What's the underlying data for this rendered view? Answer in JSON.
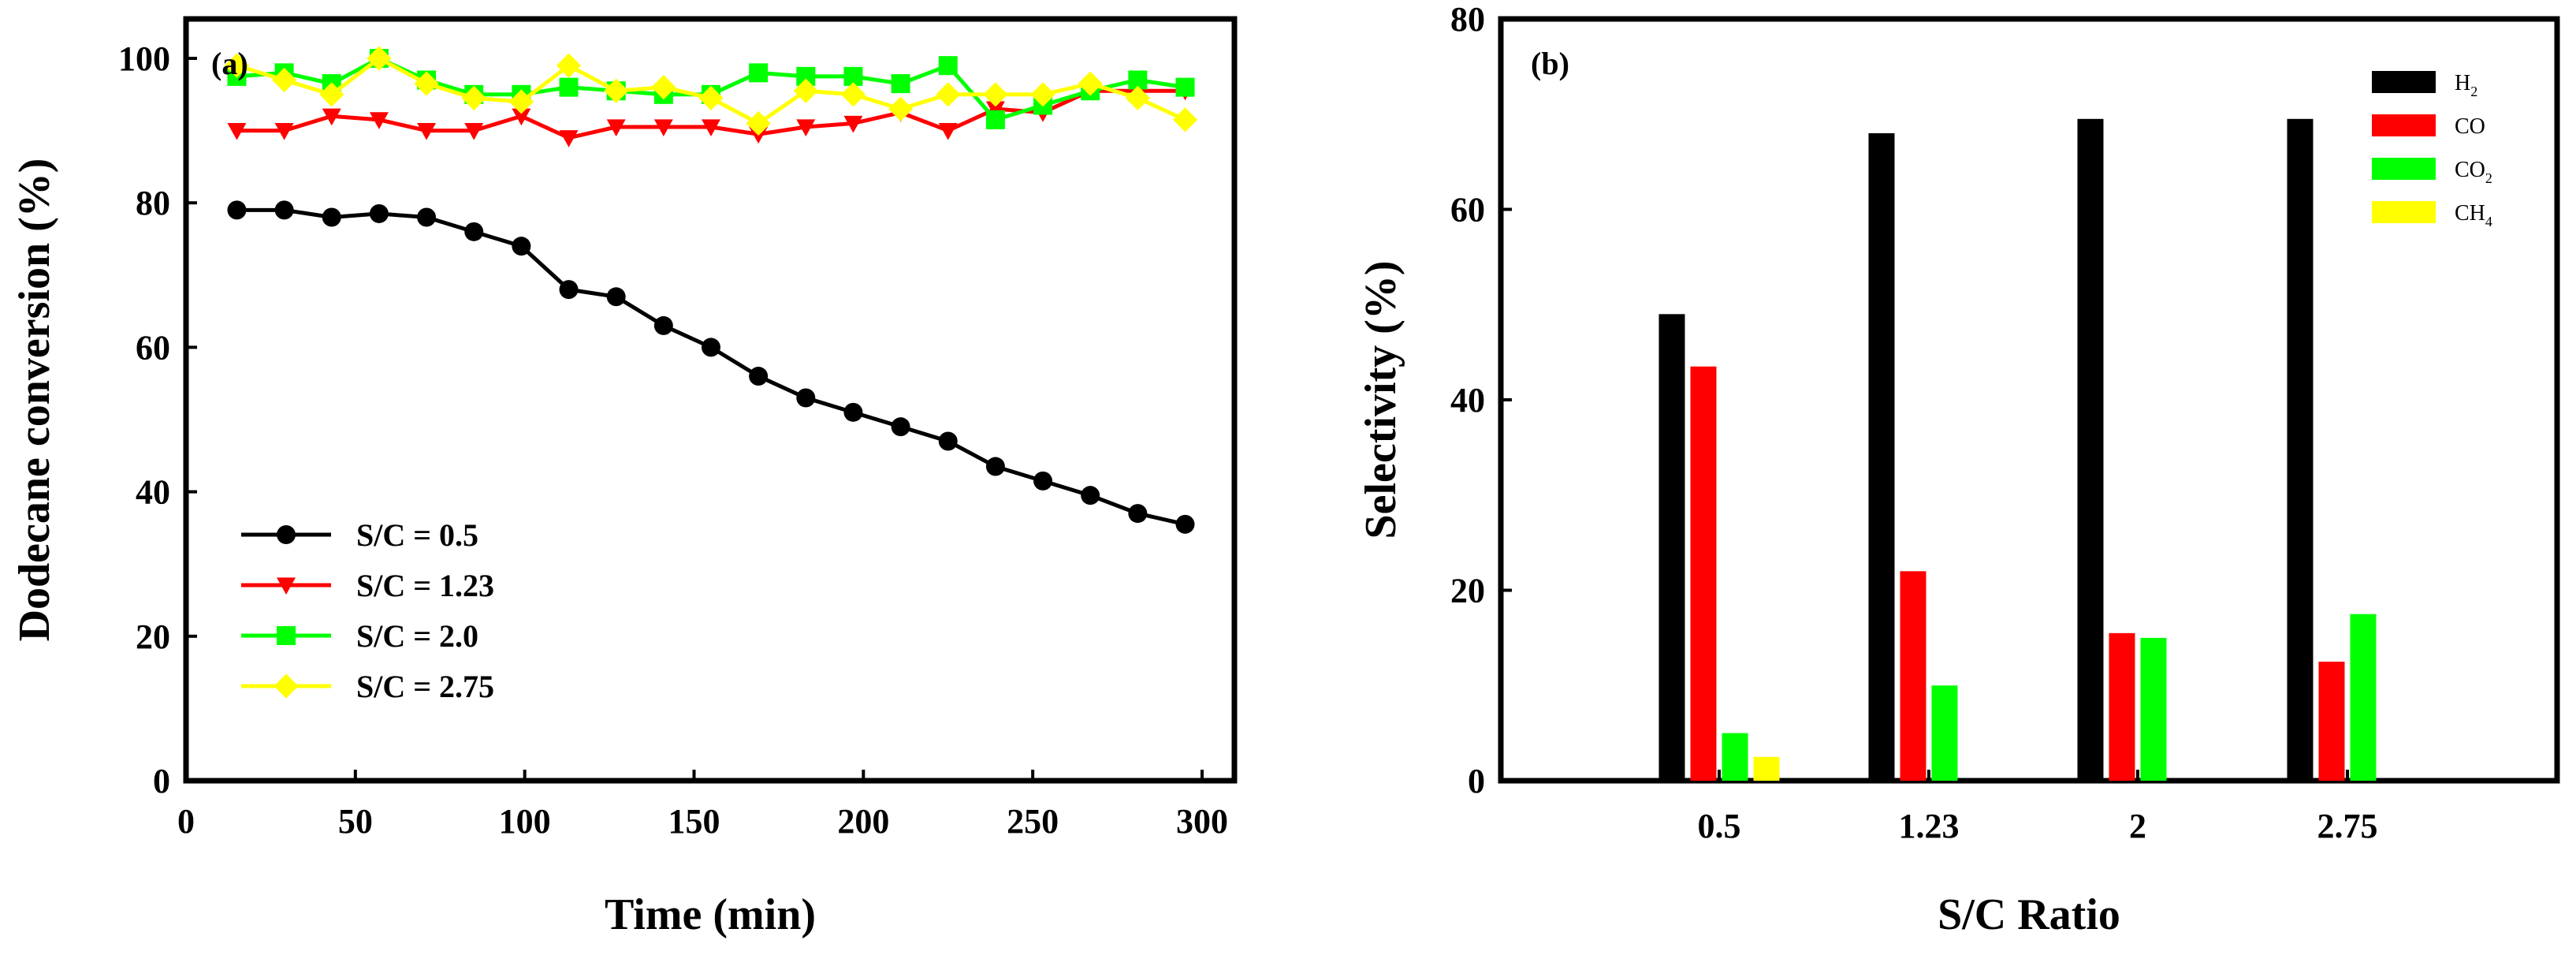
{
  "chart_data": [
    {
      "type": "line",
      "panel_label": "(a)",
      "xlabel": "Time (min)",
      "ylabel": "Dodecane conversion (%)",
      "xlim": [
        0,
        300
      ],
      "ylim": [
        0,
        100
      ],
      "xticks": [
        0,
        50,
        100,
        150,
        200,
        250,
        300
      ],
      "yticks": [
        0,
        20,
        40,
        60,
        80,
        100
      ],
      "legend_position": "lower-left",
      "x": [
        15,
        29,
        43,
        57,
        71,
        85,
        99,
        113,
        127,
        141,
        155,
        169,
        183,
        197,
        211,
        225,
        239,
        253,
        267,
        281,
        295
      ],
      "series": [
        {
          "name": "S/C = 0.5",
          "color": "#000000",
          "marker": "circle",
          "values": [
            79,
            79,
            78,
            78.5,
            78,
            76,
            74,
            68,
            67,
            63,
            60,
            56,
            53,
            51,
            49,
            47,
            43.5,
            41.5,
            39.5,
            37,
            35.5
          ],
          "x_start": 15
        },
        {
          "name": "S/C = 1.23",
          "color": "#ff0000",
          "marker": "triangle-down",
          "values": [
            90,
            90,
            92,
            91.5,
            90,
            90,
            92,
            89,
            90.5,
            90.5,
            90.5,
            89.5,
            90.5,
            91,
            92.5,
            90,
            93,
            92.5,
            95.5,
            95.5,
            95.5
          ],
          "x_start": 15
        },
        {
          "name": "S/C = 2.0",
          "color": "#00ff00",
          "marker": "square",
          "values": [
            97.5,
            98,
            96.5,
            100,
            97,
            95,
            95,
            96,
            95.5,
            95,
            95,
            98,
            97.5,
            97.5,
            96.5,
            99,
            91.5,
            93.5,
            95.5,
            97,
            96
          ],
          "x_start": 15
        },
        {
          "name": "S/C = 2.75",
          "color": "#ffff00",
          "marker": "diamond",
          "values": [
            99,
            97,
            95,
            100,
            96.5,
            94.5,
            94,
            99,
            95.5,
            96,
            94.5,
            91,
            95.5,
            95,
            93,
            95,
            95,
            95,
            96.5,
            94.5,
            91.5
          ],
          "x_start": 15
        }
      ]
    },
    {
      "type": "bar",
      "panel_label": "(b)",
      "xlabel": "S/C Ratio",
      "ylabel": "Selectivity (%)",
      "ylim": [
        0,
        80
      ],
      "yticks": [
        0,
        20,
        40,
        60,
        80
      ],
      "categories": [
        "0.5",
        "1.23",
        "2",
        "2.75"
      ],
      "legend_position": "top-right",
      "series": [
        {
          "name": "H",
          "sub": "2",
          "color": "#000000",
          "values": [
            49,
            68,
            69.5,
            69.5
          ]
        },
        {
          "name": "CO",
          "sub": "",
          "color": "#ff0000",
          "values": [
            43.5,
            22,
            15.5,
            12.5
          ]
        },
        {
          "name": "CO",
          "sub": "2",
          "color": "#00ff00",
          "values": [
            5,
            10,
            15,
            17.5
          ]
        },
        {
          "name": "CH",
          "sub": "4",
          "color": "#ffff00",
          "values": [
            2.5,
            0,
            0,
            0
          ]
        }
      ]
    }
  ]
}
